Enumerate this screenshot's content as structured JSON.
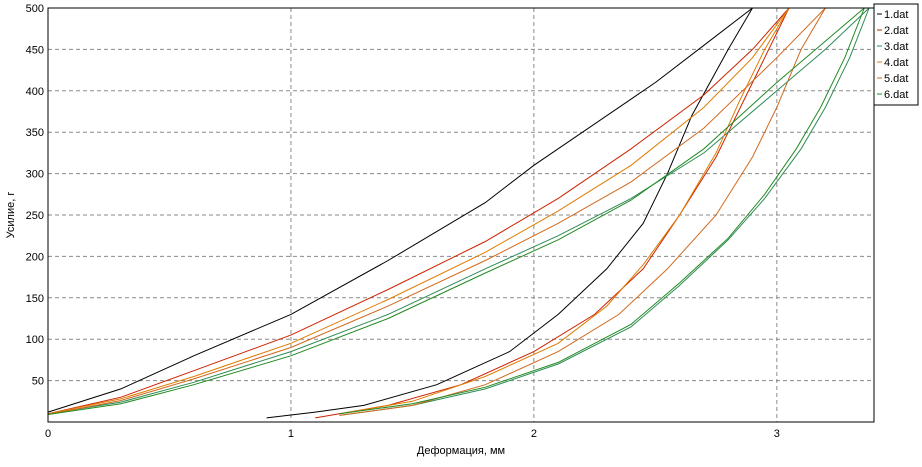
{
  "chart_data": {
    "type": "line",
    "title": "",
    "xlabel": "Деформация, мм",
    "ylabel": "Усилие, г",
    "xlim": [
      0,
      3.4
    ],
    "ylim": [
      0,
      500
    ],
    "grid": true,
    "legend_position": "right",
    "x_ticks": [
      0,
      1,
      2,
      3
    ],
    "x_tick_labels": [
      "0",
      "1",
      "2",
      "3"
    ],
    "y_ticks": [
      50,
      100,
      150,
      200,
      250,
      300,
      350,
      400,
      450,
      500
    ],
    "y_tick_labels": [
      "50",
      "100",
      "150",
      "200",
      "250",
      "300",
      "350",
      "400",
      "450",
      "500"
    ],
    "series": [
      {
        "name": "1.dat",
        "color": "#000000",
        "loading": [
          [
            0,
            12
          ],
          [
            0.3,
            40
          ],
          [
            0.6,
            80
          ],
          [
            1.0,
            130
          ],
          [
            1.4,
            195
          ],
          [
            1.8,
            265
          ],
          [
            2.0,
            310
          ],
          [
            2.2,
            350
          ],
          [
            2.5,
            410
          ],
          [
            2.7,
            455
          ],
          [
            2.9,
            500
          ]
        ],
        "unloading": [
          [
            2.9,
            500
          ],
          [
            2.8,
            450
          ],
          [
            2.65,
            370
          ],
          [
            2.55,
            300
          ],
          [
            2.45,
            240
          ],
          [
            2.3,
            185
          ],
          [
            2.1,
            130
          ],
          [
            1.9,
            85
          ],
          [
            1.6,
            45
          ],
          [
            1.3,
            20
          ],
          [
            1.1,
            12
          ],
          [
            0.9,
            5
          ]
        ]
      },
      {
        "name": "2.dat",
        "color": "#cc2200",
        "loading": [
          [
            0,
            10
          ],
          [
            0.3,
            30
          ],
          [
            0.6,
            62
          ],
          [
            1.0,
            105
          ],
          [
            1.4,
            160
          ],
          [
            1.8,
            218
          ],
          [
            2.1,
            270
          ],
          [
            2.4,
            330
          ],
          [
            2.7,
            395
          ],
          [
            2.9,
            450
          ],
          [
            3.05,
            500
          ]
        ],
        "unloading": [
          [
            3.05,
            500
          ],
          [
            2.95,
            440
          ],
          [
            2.85,
            380
          ],
          [
            2.75,
            320
          ],
          [
            2.6,
            250
          ],
          [
            2.45,
            185
          ],
          [
            2.25,
            130
          ],
          [
            2.0,
            85
          ],
          [
            1.7,
            45
          ],
          [
            1.4,
            20
          ],
          [
            1.2,
            10
          ],
          [
            1.1,
            5
          ]
        ]
      },
      {
        "name": "3.dat",
        "color": "#2e8b57",
        "loading": [
          [
            0,
            10
          ],
          [
            0.3,
            24
          ],
          [
            0.6,
            48
          ],
          [
            1.0,
            85
          ],
          [
            1.4,
            130
          ],
          [
            1.8,
            185
          ],
          [
            2.1,
            225
          ],
          [
            2.4,
            270
          ],
          [
            2.7,
            325
          ],
          [
            3.0,
            400
          ],
          [
            3.2,
            450
          ],
          [
            3.38,
            500
          ]
        ],
        "unloading": [
          [
            3.38,
            500
          ],
          [
            3.3,
            440
          ],
          [
            3.2,
            380
          ],
          [
            3.1,
            330
          ],
          [
            2.95,
            270
          ],
          [
            2.8,
            220
          ],
          [
            2.6,
            165
          ],
          [
            2.4,
            115
          ],
          [
            2.1,
            70
          ],
          [
            1.8,
            40
          ],
          [
            1.5,
            20
          ],
          [
            1.2,
            8
          ]
        ]
      },
      {
        "name": "4.dat",
        "color": "#e07b00",
        "loading": [
          [
            0,
            10
          ],
          [
            0.3,
            28
          ],
          [
            0.6,
            55
          ],
          [
            1.0,
            95
          ],
          [
            1.4,
            148
          ],
          [
            1.8,
            205
          ],
          [
            2.1,
            255
          ],
          [
            2.4,
            310
          ],
          [
            2.7,
            380
          ],
          [
            2.9,
            440
          ],
          [
            3.05,
            500
          ]
        ],
        "unloading": [
          [
            3.05,
            500
          ],
          [
            2.95,
            450
          ],
          [
            2.85,
            390
          ],
          [
            2.75,
            325
          ],
          [
            2.6,
            250
          ],
          [
            2.45,
            190
          ],
          [
            2.3,
            140
          ],
          [
            2.1,
            95
          ],
          [
            1.8,
            55
          ],
          [
            1.5,
            25
          ],
          [
            1.2,
            10
          ]
        ]
      },
      {
        "name": "5.dat",
        "color": "#d2691e",
        "loading": [
          [
            0,
            9
          ],
          [
            0.3,
            26
          ],
          [
            0.6,
            52
          ],
          [
            1.0,
            90
          ],
          [
            1.4,
            140
          ],
          [
            1.8,
            195
          ],
          [
            2.1,
            240
          ],
          [
            2.4,
            290
          ],
          [
            2.7,
            355
          ],
          [
            3.0,
            440
          ],
          [
            3.2,
            500
          ]
        ],
        "unloading": [
          [
            3.2,
            500
          ],
          [
            3.1,
            450
          ],
          [
            3.0,
            380
          ],
          [
            2.9,
            320
          ],
          [
            2.75,
            250
          ],
          [
            2.55,
            185
          ],
          [
            2.35,
            130
          ],
          [
            2.1,
            85
          ],
          [
            1.8,
            45
          ],
          [
            1.5,
            20
          ],
          [
            1.2,
            8
          ]
        ]
      },
      {
        "name": "6.dat",
        "color": "#228b22",
        "loading": [
          [
            0,
            9
          ],
          [
            0.3,
            22
          ],
          [
            0.6,
            45
          ],
          [
            1.0,
            80
          ],
          [
            1.4,
            125
          ],
          [
            1.8,
            180
          ],
          [
            2.1,
            220
          ],
          [
            2.4,
            268
          ],
          [
            2.7,
            330
          ],
          [
            3.0,
            410
          ],
          [
            3.2,
            460
          ],
          [
            3.36,
            500
          ]
        ],
        "unloading": [
          [
            3.36,
            500
          ],
          [
            3.28,
            440
          ],
          [
            3.18,
            380
          ],
          [
            3.08,
            330
          ],
          [
            2.95,
            275
          ],
          [
            2.8,
            222
          ],
          [
            2.6,
            168
          ],
          [
            2.4,
            118
          ],
          [
            2.1,
            72
          ],
          [
            1.8,
            42
          ],
          [
            1.5,
            22
          ],
          [
            1.2,
            10
          ]
        ]
      }
    ]
  }
}
